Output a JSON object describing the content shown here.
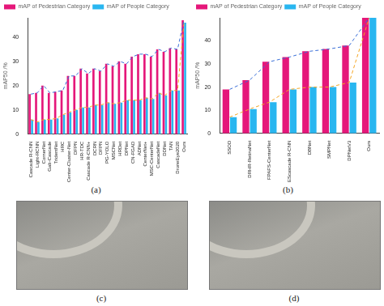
{
  "chart_data": [
    {
      "type": "bar",
      "y_label": "mAP50 /%",
      "categories": [
        "Cascade R-CNN",
        "Light-RCNN",
        "CornerNet",
        "Gab-Cascade",
        "TridentNet",
        "HRC",
        "Center-Cluster-Net",
        "DFPN",
        "HR-TDC",
        "Cascade R-CNN+",
        "DCRN",
        "DFPN",
        "PG-YOLO",
        "MSCNet",
        "HRDet",
        "DPNet",
        "CN-FGAD",
        "ADNet",
        "CenterNet+",
        "MSC-CenterNet",
        "CascadeNet",
        "DDNet",
        "TAN",
        "DroneEye2020",
        "Ours"
      ],
      "series": [
        {
          "name": "mAP of Pedestrian Category",
          "color": "#e5177a",
          "values": [
            16.5,
            17,
            20,
            17,
            17.5,
            18,
            24,
            24,
            27,
            25,
            27,
            26,
            29,
            28,
            30,
            29,
            32,
            33,
            33,
            32,
            35,
            34,
            35.5,
            35,
            47
          ]
        },
        {
          "name": "mAP of People Category",
          "color": "#29b6f0",
          "values": [
            6,
            5,
            6,
            6,
            6.5,
            8,
            9,
            10,
            11,
            11,
            12,
            12,
            13,
            12.5,
            13,
            14,
            14,
            14,
            15,
            14.5,
            17,
            16,
            18,
            18,
            46
          ]
        },
        {
          "type": "line",
          "line_style": "dashed",
          "color": "#3a6fd8",
          "values": [
            16.5,
            17,
            20,
            17,
            17.5,
            18,
            24,
            24,
            27,
            25,
            27,
            26,
            29,
            28,
            30,
            29,
            32,
            33,
            33,
            32,
            35,
            34,
            35.5,
            35,
            47
          ]
        },
        {
          "type": "line",
          "line_style": "dashed",
          "color": "#f5a623",
          "values": [
            6,
            5,
            6,
            6,
            6.5,
            8,
            9,
            10,
            11,
            11,
            12,
            12,
            13,
            12.5,
            13,
            14,
            14,
            14,
            15,
            14.5,
            17,
            16,
            18,
            18,
            46
          ]
        }
      ],
      "ylim": [
        0,
        48
      ],
      "yticks": [
        0,
        10,
        20,
        30,
        40
      ],
      "grid": false,
      "legend": "top-left"
    },
    {
      "type": "bar",
      "y_label": "mAP50 /%",
      "categories": [
        "SSOD",
        "DRHR-RetinaNet",
        "FPAFS-CenterNet",
        "EScascade R-CNN",
        "DBNet",
        "SMPNet",
        "DPNetV3",
        "Ours"
      ],
      "series": [
        {
          "name": "mAP of Pedestrian Category",
          "color": "#e5177a",
          "values": [
            19,
            23,
            31,
            33,
            35.5,
            36.5,
            38,
            50
          ]
        },
        {
          "name": "mAP of People Category",
          "color": "#29b6f0",
          "values": [
            7,
            10.5,
            13.5,
            19,
            20,
            20,
            22,
            50
          ]
        },
        {
          "type": "line",
          "line_style": "dashed",
          "color": "#3a6fd8",
          "values": [
            19,
            23,
            31,
            33,
            35.5,
            36.5,
            38,
            50
          ]
        },
        {
          "type": "line",
          "line_style": "dashed",
          "color": "#f5a623",
          "values": [
            7,
            10.5,
            13.5,
            19,
            20,
            20,
            22,
            50
          ]
        }
      ],
      "ylim": [
        0,
        50
      ],
      "yticks": [
        0,
        10,
        20,
        30,
        40
      ],
      "grid": false,
      "legend": "top-left"
    }
  ],
  "captions": [
    "(a)",
    "(b)",
    "(c)",
    "(d)"
  ]
}
